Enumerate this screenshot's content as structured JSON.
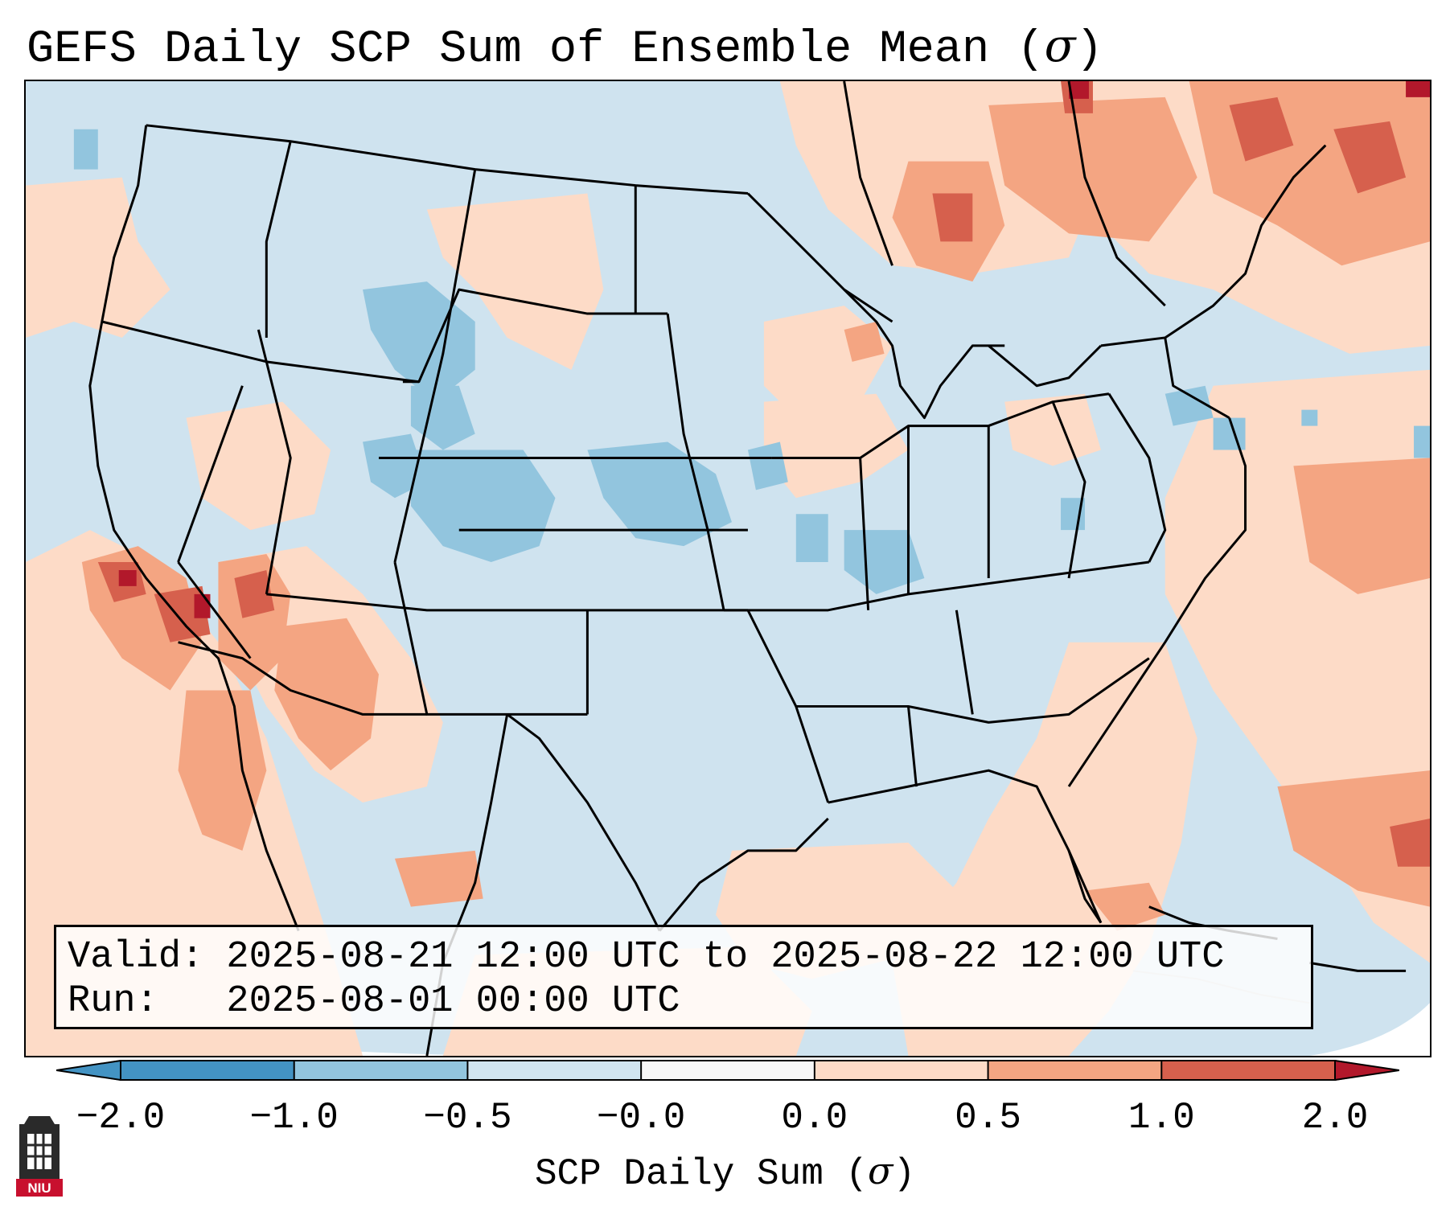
{
  "title": {
    "text": "GEFS Daily SCP Sum of Ensemble Mean (",
    "symbol": "σ",
    "close": ")"
  },
  "info": {
    "valid_line": "Valid: 2025-08-21 12:00 UTC to 2025-08-22 12:00 UTC",
    "run_line": "Run:   2025-08-01 00:00 UTC"
  },
  "colorbar": {
    "label_text": "SCP Daily Sum (",
    "label_symbol": "σ",
    "label_close": ")",
    "ticks": [
      "−2.0",
      "−1.0",
      "−0.5",
      "−0.0",
      "0.0",
      "0.5",
      "1.0",
      "2.0"
    ],
    "colors": [
      "#4393c3",
      "#92c5de",
      "#d1e5f0",
      "#f7f7f7",
      "#fddbc7",
      "#f4a582",
      "#d6604d",
      "#b2182b"
    ]
  },
  "logo": {
    "text": "NIU",
    "color": "#c8102e"
  },
  "map": {
    "ocean_color": "#cfe3ef",
    "border_color": "#000000"
  }
}
